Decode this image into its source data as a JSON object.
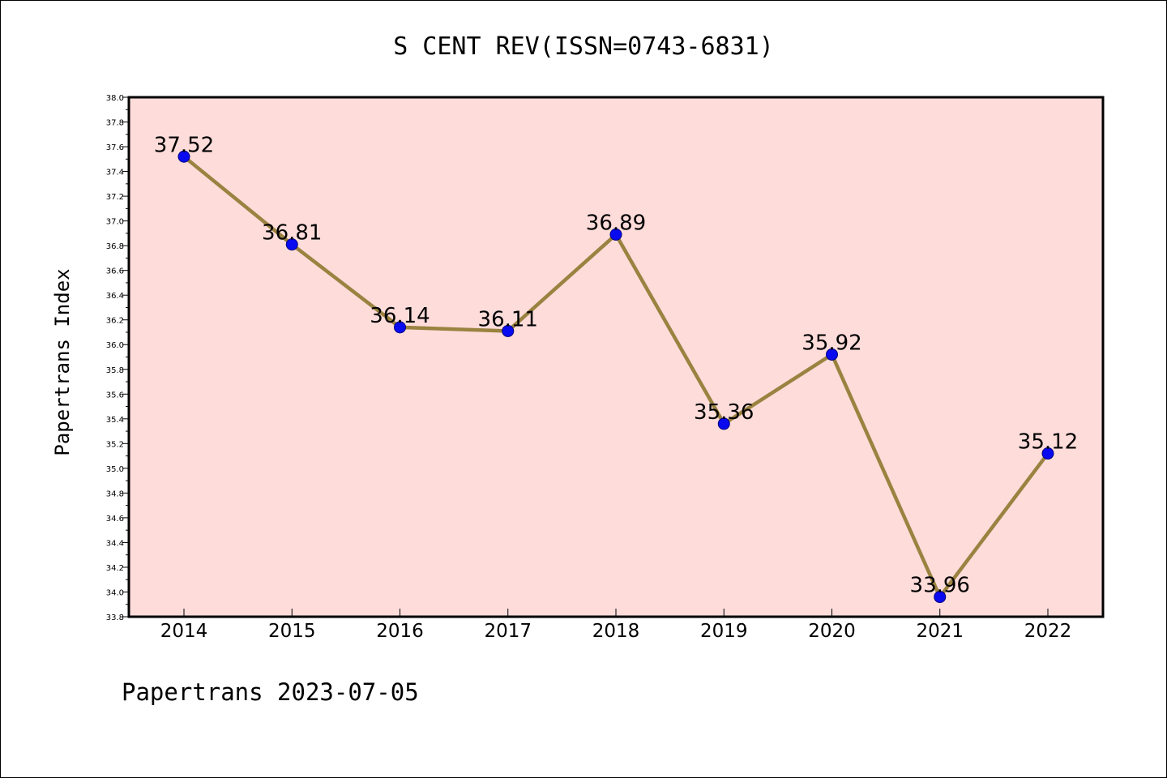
{
  "chart_data": {
    "type": "line",
    "title": "S CENT REV(ISSN=0743-6831)",
    "ylabel": "Papertrans Index",
    "xlabel": "",
    "footer": "Papertrans 2023-07-05",
    "categories": [
      "2014",
      "2015",
      "2016",
      "2017",
      "2018",
      "2019",
      "2020",
      "2021",
      "2022"
    ],
    "values": [
      37.52,
      36.81,
      36.14,
      36.11,
      36.89,
      35.36,
      35.92,
      33.96,
      35.12
    ],
    "data_labels": [
      "37.52",
      "36.81",
      "36.14",
      "36.11",
      "36.89",
      "35.36",
      "35.92",
      "33.96",
      "35.12"
    ],
    "ylim": [
      33.8,
      38.0
    ],
    "yticks": [
      "33.8",
      "34.0",
      "34.2",
      "34.4",
      "34.6",
      "34.8",
      "35.0",
      "35.2",
      "35.4",
      "35.6",
      "35.8",
      "36.0",
      "36.2",
      "36.4",
      "36.6",
      "36.8",
      "37.0",
      "37.2",
      "37.4",
      "37.6",
      "37.8",
      "38.0"
    ],
    "grid": false,
    "colors": {
      "plot_background": "#fddcda",
      "line": "#9a8240",
      "marker": "#0a0af0"
    }
  }
}
